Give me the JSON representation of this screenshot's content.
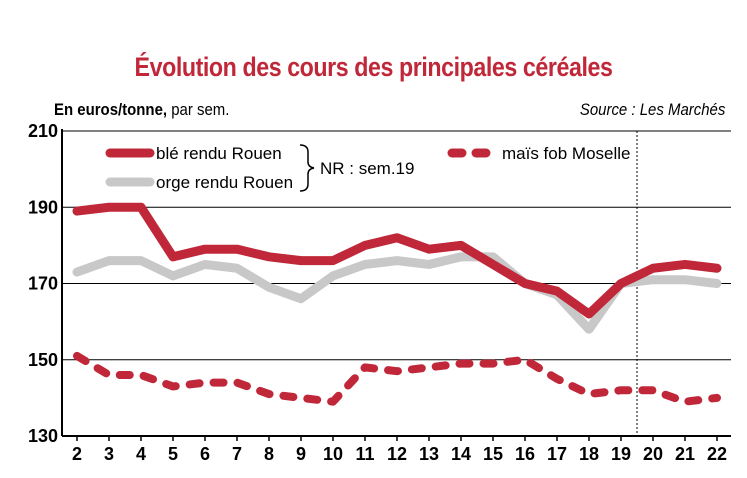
{
  "chart_data": {
    "type": "line",
    "title": "Évolution des cours des principales céréales",
    "unit_bold": "En euros/tonne,",
    "unit_rest": " par sem.",
    "source": "Source : Les Marchés",
    "note": "NR : sem.19",
    "x": [
      2,
      3,
      4,
      5,
      6,
      7,
      8,
      9,
      10,
      11,
      12,
      13,
      14,
      15,
      16,
      17,
      18,
      19,
      20,
      21,
      22
    ],
    "ylim": [
      130,
      210
    ],
    "yticks": [
      130,
      150,
      170,
      190,
      210
    ],
    "grid": "horizontal",
    "divider_after_x": 19,
    "series": [
      {
        "name": "blé rendu Rouen",
        "color": "#c0283a",
        "style": "solid",
        "values": [
          189,
          190,
          190,
          177,
          179,
          179,
          177,
          176,
          176,
          180,
          182,
          179,
          180,
          175,
          170,
          168,
          162,
          170,
          174,
          175,
          174
        ]
      },
      {
        "name": "orge rendu Rouen",
        "color": "#c8c8c8",
        "style": "solid",
        "values": [
          173,
          176,
          176,
          172,
          175,
          174,
          169,
          166,
          172,
          175,
          176,
          175,
          177,
          177,
          170,
          167,
          158,
          170,
          171,
          171,
          170
        ]
      },
      {
        "name": "maïs fob Moselle",
        "color": "#c0283a",
        "style": "dashed",
        "values": [
          151,
          146,
          146,
          143,
          144,
          144,
          141,
          140,
          139,
          148,
          147,
          148,
          149,
          149,
          150,
          145,
          141,
          142,
          142,
          139,
          140
        ]
      }
    ]
  }
}
